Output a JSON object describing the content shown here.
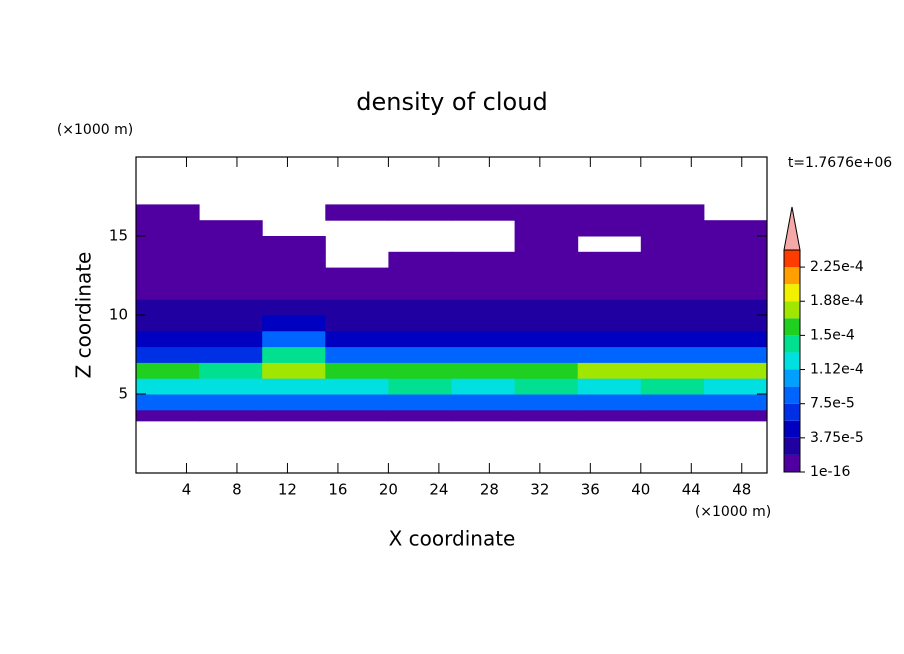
{
  "chart_data": {
    "type": "contour",
    "title": "density of cloud",
    "annotation": "t=1.7676e+06",
    "x_label": "X coordinate",
    "y_label": "Z coordinate",
    "x_unit": "(×1000 m)",
    "y_unit": "(×1000 m)",
    "xlim": [
      0,
      50
    ],
    "ylim": [
      0,
      20
    ],
    "xticks": [
      4,
      8,
      12,
      16,
      20,
      24,
      28,
      32,
      36,
      40,
      44,
      48
    ],
    "yticks": [
      5,
      10,
      15
    ],
    "levels": [
      1e-16,
      1.875e-05,
      3.75e-05,
      5.625e-05,
      7.5e-05,
      9.375e-05,
      0.0001125,
      0.00013125,
      0.00015,
      0.00016875,
      0.0001875,
      0.00020625,
      0.000225,
      0.00024375
    ],
    "colors": [
      "#5000a0",
      "#2000a0",
      "#0000c0",
      "#0030e6",
      "#0064ff",
      "#00a0ff",
      "#00e0e0",
      "#00e090",
      "#20d020",
      "#a0e600",
      "#f0f000",
      "#ffa000",
      "#ff3c00"
    ],
    "extend_color": "#f4a8a8",
    "colorbar_ticks": [
      {
        "value": 1e-16,
        "label": "1e-16"
      },
      {
        "value": 3.75e-05,
        "label": "3.75e-5"
      },
      {
        "value": 7.5e-05,
        "label": "7.5e-5"
      },
      {
        "value": 0.0001125,
        "label": "1.12e-4"
      },
      {
        "value": 0.00015,
        "label": "1.5e-4"
      },
      {
        "value": 0.0001875,
        "label": "1.88e-4"
      },
      {
        "value": 0.000225,
        "label": "2.25e-4"
      }
    ],
    "field": {
      "x": [
        0,
        5,
        10,
        15,
        20,
        25,
        30,
        35,
        40,
        45,
        50
      ],
      "z": [
        3.3,
        4,
        5,
        6,
        7,
        8,
        9,
        10,
        11,
        12,
        13,
        14,
        15,
        16,
        17
      ],
      "values": [
        [
          5e-06,
          5e-06,
          5e-06,
          5e-06,
          5e-06,
          5e-06,
          5e-06,
          5e-06,
          5e-06,
          5e-06
        ],
        [
          8e-05,
          9e-05,
          8e-05,
          8e-05,
          8e-05,
          8e-05,
          8e-05,
          8e-05,
          8e-05,
          8e-05
        ],
        [
          0.00013,
          0.00012,
          0.00013,
          0.00013,
          0.000135,
          0.00013,
          0.000135,
          0.00013,
          0.000135,
          0.00013
        ],
        [
          0.00015,
          0.00014,
          0.00017,
          0.00016,
          0.00016,
          0.000165,
          0.00016,
          0.00017,
          0.00017,
          0.00017
        ],
        [
          7e-05,
          6e-05,
          0.00014,
          9e-05,
          8e-05,
          9e-05,
          8e-05,
          9e-05,
          9e-05,
          9e-05
        ],
        [
          4e-05,
          4e-05,
          8e-05,
          5e-05,
          4e-05,
          4e-05,
          4e-05,
          4e-05,
          4e-05,
          4e-05
        ],
        [
          3e-05,
          3e-05,
          5e-05,
          3e-05,
          3e-05,
          3e-05,
          3e-05,
          3e-05,
          3e-05,
          3e-05
        ],
        [
          2e-05,
          2e-05,
          2e-05,
          2e-05,
          2e-05,
          2e-05,
          2e-05,
          2e-05,
          2e-05,
          2e-05
        ],
        [
          1e-05,
          1e-05,
          1e-05,
          1e-05,
          1e-05,
          1e-05,
          1e-05,
          1e-05,
          1e-05,
          1e-05
        ],
        [
          5e-06,
          5e-06,
          5e-06,
          5e-06,
          5e-06,
          5e-06,
          5e-06,
          5e-06,
          5e-06,
          5e-06
        ],
        [
          5e-06,
          5e-06,
          5e-06,
          null,
          5e-06,
          5e-06,
          5e-06,
          5e-06,
          5e-06,
          5e-06
        ],
        [
          5e-06,
          5e-06,
          5e-06,
          null,
          null,
          null,
          5e-06,
          null,
          5e-06,
          5e-06
        ],
        [
          5e-06,
          5e-06,
          null,
          null,
          null,
          null,
          5e-06,
          5e-06,
          5e-06,
          5e-06
        ],
        [
          5e-06,
          null,
          null,
          5e-06,
          5e-06,
          5e-06,
          5e-06,
          5e-06,
          5e-06,
          null
        ]
      ]
    }
  }
}
